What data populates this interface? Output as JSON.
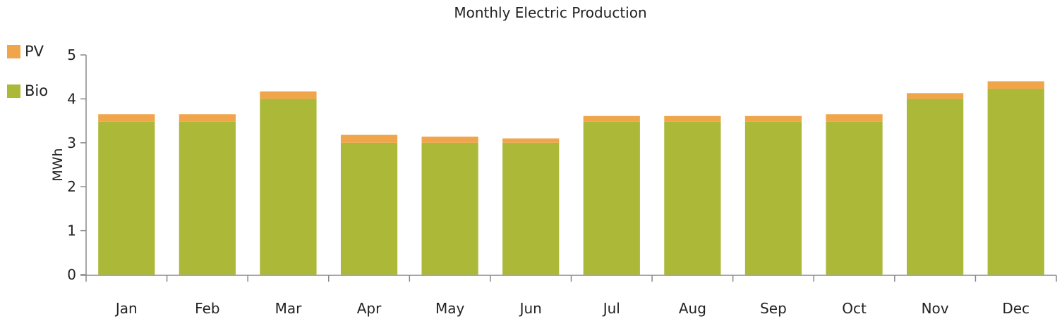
{
  "chart_data": {
    "type": "bar",
    "stacked": true,
    "title": "Monthly Electric Production",
    "xlabel": "",
    "ylabel": "MWh",
    "ylim": [
      0,
      5
    ],
    "yticks": [
      0,
      1,
      2,
      3,
      4,
      5
    ],
    "categories": [
      "Jan",
      "Feb",
      "Mar",
      "Apr",
      "May",
      "Jun",
      "Jul",
      "Aug",
      "Sep",
      "Oct",
      "Nov",
      "Dec"
    ],
    "series": [
      {
        "name": "Bio",
        "color": "#abb838",
        "values": [
          3.48,
          3.48,
          4.0,
          3.0,
          3.0,
          3.0,
          3.48,
          3.48,
          3.48,
          3.48,
          4.0,
          4.23
        ]
      },
      {
        "name": "PV",
        "color": "#f0a54a",
        "values": [
          0.17,
          0.17,
          0.17,
          0.18,
          0.14,
          0.1,
          0.13,
          0.13,
          0.13,
          0.17,
          0.13,
          0.17
        ]
      }
    ],
    "legend_position": "top-left",
    "grid": false
  }
}
